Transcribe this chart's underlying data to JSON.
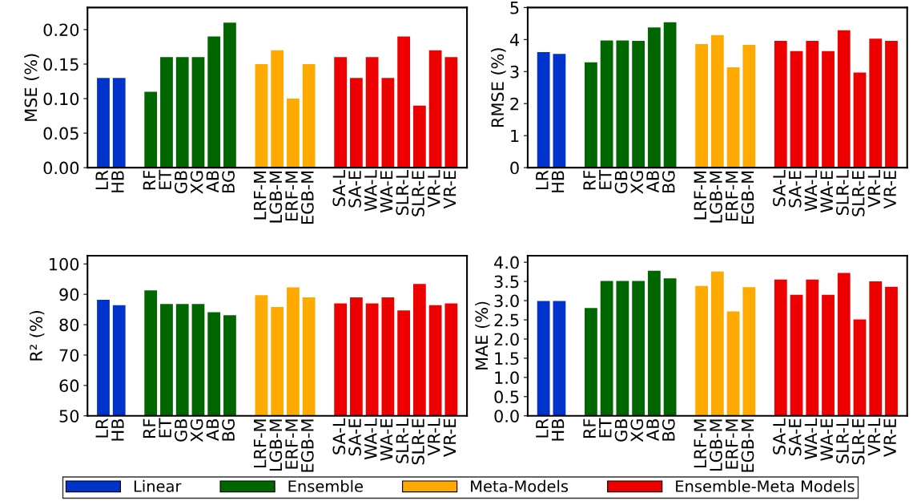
{
  "chart_data": [
    {
      "type": "bar",
      "ylabel": "MSE (%)",
      "categories": [
        "LR",
        "HB",
        null,
        "RF",
        "ET",
        "GB",
        "XG",
        "AB",
        "BG",
        null,
        "LRF-M",
        "LGB-M",
        "ERF-M",
        "EGB-M",
        null,
        "SA-L",
        "SA-E",
        "WA-L",
        "WA-E",
        "SLR-L",
        "SLR-E",
        "VR-L",
        "VR-E"
      ],
      "ylim": [
        0,
        0.232
      ],
      "yticks": [
        {
          "value": 0,
          "label": "0.00"
        },
        {
          "value": 0.05,
          "label": "0.05"
        },
        {
          "value": 0.1,
          "label": "0.10"
        },
        {
          "value": 0.15,
          "label": "0.15"
        },
        {
          "value": 0.2,
          "label": "0.20"
        }
      ],
      "legend": "bottom",
      "series": [
        {
          "name": "Linear",
          "color": "#0033cc",
          "values": [
            0.13,
            0.13,
            null,
            null,
            null,
            null,
            null,
            null,
            null,
            null,
            null,
            null,
            null,
            null,
            null,
            null,
            null,
            null,
            null,
            null,
            null,
            null,
            null
          ]
        },
        {
          "name": "Ensemble",
          "color": "#006600",
          "values": [
            null,
            null,
            null,
            0.11,
            0.16,
            0.16,
            0.16,
            0.19,
            0.21,
            null,
            null,
            null,
            null,
            null,
            null,
            null,
            null,
            null,
            null,
            null,
            null,
            null,
            null
          ]
        },
        {
          "name": "Meta-Models",
          "color": "#ffaa00",
          "values": [
            null,
            null,
            null,
            null,
            null,
            null,
            null,
            null,
            null,
            null,
            0.15,
            0.17,
            0.1,
            0.15,
            null,
            null,
            null,
            null,
            null,
            null,
            null,
            null,
            null
          ]
        },
        {
          "name": "Ensemble-Meta Models",
          "color": "#ee0000",
          "values": [
            null,
            null,
            null,
            null,
            null,
            null,
            null,
            null,
            null,
            null,
            null,
            null,
            null,
            null,
            null,
            0.16,
            0.13,
            0.16,
            0.13,
            0.19,
            0.09,
            0.17,
            0.16
          ]
        }
      ]
    },
    {
      "type": "bar",
      "ylabel": "RMSE (%)",
      "categories": [
        "LR",
        "HB",
        null,
        "RF",
        "ET",
        "GB",
        "XG",
        "AB",
        "BG",
        null,
        "LRF-M",
        "LGB-M",
        "ERF-M",
        "EGB-M",
        null,
        "SA-L",
        "SA-E",
        "WA-L",
        "WA-E",
        "SLR-L",
        "SLR-E",
        "VR-L",
        "VR-E"
      ],
      "ylim": [
        0,
        5
      ],
      "yticks": [
        0,
        1,
        2,
        3,
        4,
        5
      ],
      "series": [
        {
          "color": "#0033cc",
          "values": [
            3.61,
            3.55,
            null,
            null,
            null,
            null,
            null,
            null,
            null,
            null,
            null,
            null,
            null,
            null,
            null,
            null,
            null,
            null,
            null,
            null,
            null,
            null,
            null
          ]
        },
        {
          "color": "#006600",
          "values": [
            null,
            null,
            null,
            3.29,
            3.97,
            3.97,
            3.96,
            4.38,
            4.54,
            null,
            null,
            null,
            null,
            null,
            null,
            null,
            null,
            null,
            null,
            null,
            null,
            null,
            null
          ]
        },
        {
          "color": "#ffaa00",
          "values": [
            null,
            null,
            null,
            null,
            null,
            null,
            null,
            null,
            null,
            null,
            3.86,
            4.14,
            3.13,
            3.83,
            null,
            null,
            null,
            null,
            null,
            null,
            null,
            null,
            null
          ]
        },
        {
          "color": "#ee0000",
          "values": [
            null,
            null,
            null,
            null,
            null,
            null,
            null,
            null,
            null,
            null,
            null,
            null,
            null,
            null,
            null,
            3.96,
            3.64,
            3.96,
            3.64,
            4.29,
            2.97,
            4.03,
            3.96
          ]
        }
      ]
    },
    {
      "type": "bar",
      "ylabel": "R² (%)",
      "categories": [
        "LR",
        "HB",
        null,
        "RF",
        "ET",
        "GB",
        "XG",
        "AB",
        "BG",
        null,
        "LRF-M",
        "LGB-M",
        "ERF-M",
        "EGB-M",
        null,
        "SA-L",
        "SA-E",
        "WA-L",
        "WA-E",
        "SLR-L",
        "SLR-E",
        "VR-L",
        "VR-E"
      ],
      "ylim": [
        50,
        102.7
      ],
      "yticks": [
        50,
        60,
        70,
        80,
        90,
        100
      ],
      "series": [
        {
          "color": "#0033cc",
          "values": [
            88.2,
            86.4,
            null,
            null,
            null,
            null,
            null,
            null,
            null,
            null,
            null,
            null,
            null,
            null,
            null,
            null,
            null,
            null,
            null,
            null,
            null,
            null,
            null
          ]
        },
        {
          "color": "#006600",
          "values": [
            null,
            null,
            null,
            91.3,
            86.8,
            86.8,
            86.8,
            84.1,
            83.1,
            null,
            null,
            null,
            null,
            null,
            null,
            null,
            null,
            null,
            null,
            null,
            null,
            null,
            null
          ]
        },
        {
          "color": "#ffaa00",
          "values": [
            null,
            null,
            null,
            null,
            null,
            null,
            null,
            null,
            null,
            null,
            89.7,
            85.8,
            92.3,
            89.0,
            null,
            null,
            null,
            null,
            null,
            null,
            null,
            null,
            null
          ]
        },
        {
          "color": "#ee0000",
          "values": [
            null,
            null,
            null,
            null,
            null,
            null,
            null,
            null,
            null,
            null,
            null,
            null,
            null,
            null,
            null,
            87.0,
            89.0,
            87.0,
            89.0,
            84.7,
            93.4,
            86.4,
            87.0
          ]
        }
      ]
    },
    {
      "type": "bar",
      "ylabel": "MAE (%)",
      "categories": [
        "LR",
        "HB",
        null,
        "RF",
        "ET",
        "GB",
        "XG",
        "AB",
        "BG",
        null,
        "LRF-M",
        "LGB-M",
        "ERF-M",
        "EGB-M",
        null,
        "SA-L",
        "SA-E",
        "WA-L",
        "WA-E",
        "SLR-L",
        "SLR-E",
        "VR-L",
        "VR-E"
      ],
      "ylim": [
        0,
        4.17
      ],
      "yticks": [
        {
          "value": 0,
          "label": "0.0"
        },
        0.5,
        {
          "value": 1,
          "label": "1.0"
        },
        1.5,
        {
          "value": 2,
          "label": "2.0"
        },
        2.5,
        {
          "value": 3,
          "label": "3.0"
        },
        3.5,
        {
          "value": 4,
          "label": "4.0"
        }
      ],
      "series": [
        {
          "color": "#0033cc",
          "values": [
            2.99,
            2.99,
            null,
            null,
            null,
            null,
            null,
            null,
            null,
            null,
            null,
            null,
            null,
            null,
            null,
            null,
            null,
            null,
            null,
            null,
            null,
            null,
            null
          ]
        },
        {
          "color": "#006600",
          "values": [
            null,
            null,
            null,
            2.81,
            3.51,
            3.51,
            3.51,
            3.78,
            3.58,
            null,
            null,
            null,
            null,
            null,
            null,
            null,
            null,
            null,
            null,
            null,
            null,
            null,
            null
          ]
        },
        {
          "color": "#ffaa00",
          "values": [
            null,
            null,
            null,
            null,
            null,
            null,
            null,
            null,
            null,
            null,
            3.38,
            3.76,
            2.72,
            3.35,
            null,
            null,
            null,
            null,
            null,
            null,
            null,
            null,
            null
          ]
        },
        {
          "color": "#ee0000",
          "values": [
            null,
            null,
            null,
            null,
            null,
            null,
            null,
            null,
            null,
            null,
            null,
            null,
            null,
            null,
            null,
            3.55,
            3.15,
            3.55,
            3.15,
            3.72,
            2.51,
            3.5,
            3.36
          ]
        }
      ]
    }
  ]
}
